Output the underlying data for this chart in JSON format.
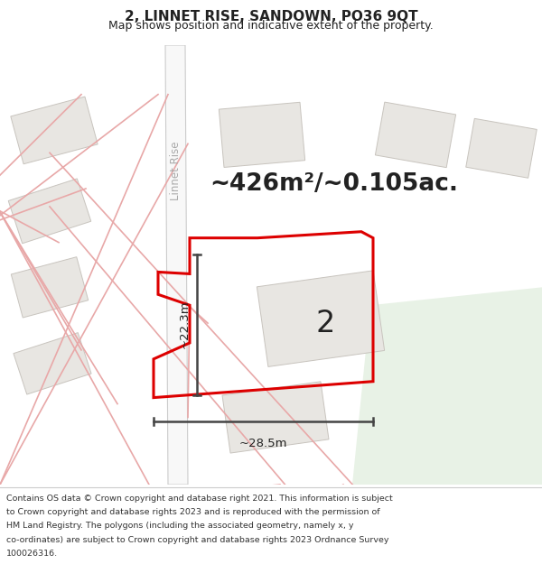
{
  "title": "2, LINNET RISE, SANDOWN, PO36 9QT",
  "subtitle": "Map shows position and indicative extent of the property.",
  "area_text": "~426m²/~0.105ac.",
  "property_label": "2",
  "width_label": "~28.5m",
  "height_label": "~22.3m",
  "road_label": "Linnet Rise",
  "footer_line1": "Contains OS data © Crown copyright and database right 2021. This information is subject",
  "footer_line2": "to Crown copyright and database rights 2023 and is reproduced with the permission of",
  "footer_line3": "HM Land Registry. The polygons (including the associated geometry, namely x, y",
  "footer_line4": "co-ordinates) are subject to Crown copyright and database rights 2023 Ordnance Survey",
  "footer_line5": "100026316.",
  "bg_color": "#f5f3f0",
  "green_color": "#e8f2e6",
  "road_fill": "#ffffff",
  "road_edge": "#cccccc",
  "plot_fill": "#e8e6e2",
  "plot_edge": "#c8c4be",
  "pink": "#e8a8a8",
  "red": "#dd0000",
  "meas_color": "#444444",
  "road_text_color": "#aaaaaa",
  "text_dark": "#222222"
}
